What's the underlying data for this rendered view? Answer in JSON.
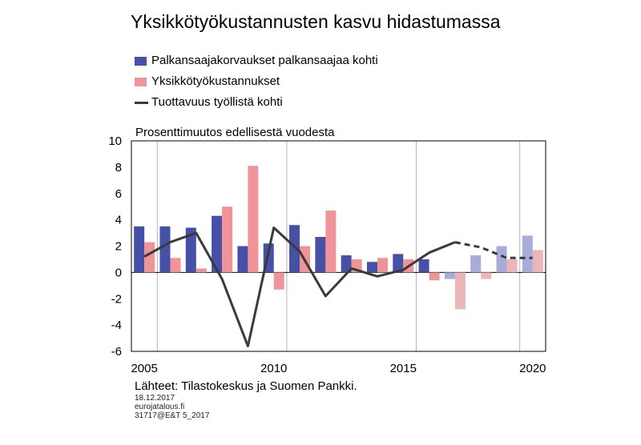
{
  "colors": {
    "wage": "#4650a6",
    "ulc": "#f0949a",
    "wage_forecast": "#a9acd8",
    "ulc_forecast": "#e8b6bb",
    "productivity": "#3a3a3a"
  },
  "chart_data": {
    "type": "bar",
    "title": "Yksikkötyökustannusten kasvu hidastumassa",
    "ylabel": "Prosenttimuutos edellisestä vuodesta",
    "ylim": [
      -6,
      10
    ],
    "yticks": [
      "10",
      "8",
      "6",
      "4",
      "2",
      "0",
      "-2",
      "-4",
      "-6"
    ],
    "xlim": [
      2004.5,
      2020.5
    ],
    "xticks": [
      "2005",
      "2010",
      "2015",
      "2020"
    ],
    "gridlines_x": [
      2005.5,
      2010.5,
      2015.5,
      2019.5
    ],
    "forecast_from": 2017,
    "categories": [
      2005,
      2006,
      2007,
      2008,
      2009,
      2010,
      2011,
      2012,
      2013,
      2014,
      2015,
      2016,
      2017,
      2018,
      2019,
      2020
    ],
    "series": [
      {
        "name": "Palkansaajakorvaukset palkansaajaa kohti",
        "type": "bar",
        "values": [
          3.5,
          3.5,
          3.4,
          4.3,
          2.0,
          2.2,
          3.6,
          2.7,
          1.3,
          0.8,
          1.4,
          1.0,
          -0.5,
          1.3,
          2.0,
          2.8
        ]
      },
      {
        "name": "Yksikkötyökustannukset",
        "type": "bar",
        "values": [
          2.3,
          1.1,
          0.3,
          5.0,
          8.1,
          -1.3,
          2.0,
          4.7,
          1.0,
          1.1,
          1.0,
          -0.6,
          -2.8,
          -0.5,
          1.0,
          1.7
        ]
      },
      {
        "name": "Tuottavuus työllistä kohti",
        "type": "line",
        "values": [
          1.2,
          2.3,
          3.0,
          -0.5,
          -5.6,
          3.4,
          1.6,
          -1.8,
          0.3,
          -0.3,
          0.2,
          1.5,
          2.3,
          1.9,
          1.1,
          1.1
        ]
      }
    ]
  },
  "footer": {
    "source": "Lähteet: Tilastokeskus ja Suomen Pankki.",
    "date": "18.12.2017",
    "site": "eurojatalous.fi",
    "code": "31717@E&T 5_2017"
  }
}
